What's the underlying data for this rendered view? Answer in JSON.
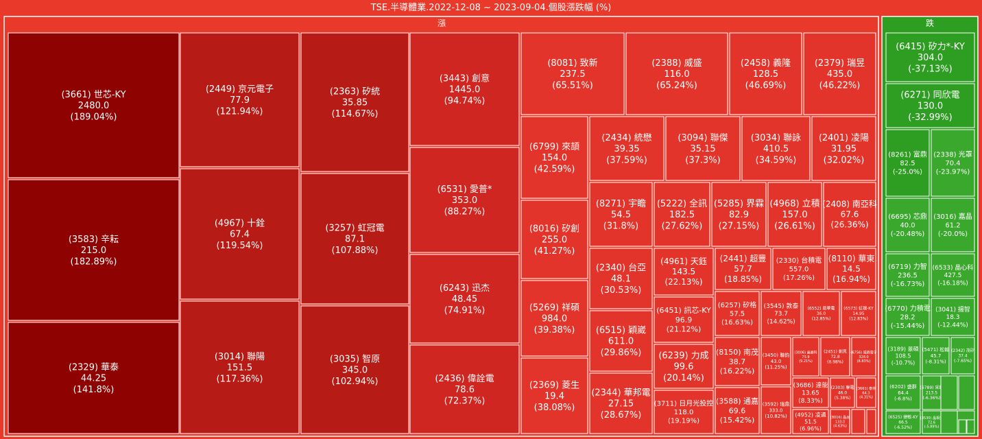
{
  "chart_data": {
    "type": "treemap",
    "title": "TSE.半導體業.2022-12-08 ~ 2023-09-04.個股漲跌幅 (%)",
    "groups": [
      {
        "name": "漲",
        "items": [
          {
            "label": "(3661) 世芯-KY",
            "price": "2480.0",
            "change": "(189.04%)",
            "pct": 189.04
          },
          {
            "label": "(3583) 辛耘",
            "price": "215.0",
            "change": "(182.89%)",
            "pct": 182.89
          },
          {
            "label": "(2329) 華泰",
            "price": "44.25",
            "change": "(141.8%)",
            "pct": 141.8
          },
          {
            "label": "(2449) 京元電子",
            "price": "77.9",
            "change": "(121.94%)",
            "pct": 121.94
          },
          {
            "label": "(4967) 十銓",
            "price": "67.4",
            "change": "(119.54%)",
            "pct": 119.54
          },
          {
            "label": "(3014) 聯陽",
            "price": "151.5",
            "change": "(117.36%)",
            "pct": 117.36
          },
          {
            "label": "(2363) 矽統",
            "price": "35.85",
            "change": "(114.67%)",
            "pct": 114.67
          },
          {
            "label": "(3257) 虹冠電",
            "price": "87.1",
            "change": "(107.88%)",
            "pct": 107.88
          },
          {
            "label": "(3035) 智原",
            "price": "345.0",
            "change": "(102.94%)",
            "pct": 102.94
          },
          {
            "label": "(3443) 創意",
            "price": "1445.0",
            "change": "(94.74%)",
            "pct": 94.74
          },
          {
            "label": "(6531) 愛普*",
            "price": "353.0",
            "change": "(88.27%)",
            "pct": 88.27
          },
          {
            "label": "(6243) 迅杰",
            "price": "48.45",
            "change": "(74.91%)",
            "pct": 74.91
          },
          {
            "label": "(2436) 偉詮電",
            "price": "78.6",
            "change": "(72.37%)",
            "pct": 72.37
          },
          {
            "label": "(8081) 致新",
            "price": "237.5",
            "change": "(65.51%)",
            "pct": 65.51
          },
          {
            "label": "(2388) 威盛",
            "price": "116.0",
            "change": "(65.24%)",
            "pct": 65.24
          },
          {
            "label": "(2458) 義隆",
            "price": "128.5",
            "change": "(46.69%)",
            "pct": 46.69
          },
          {
            "label": "(2379) 瑞昱",
            "price": "435.0",
            "change": "(46.22%)",
            "pct": 46.22
          },
          {
            "label": "(6799) 來頡",
            "price": "154.0",
            "change": "(42.59%)",
            "pct": 42.59
          },
          {
            "label": "(8016) 矽創",
            "price": "255.0",
            "change": "(41.27%)",
            "pct": 41.27
          },
          {
            "label": "(5269) 祥碩",
            "price": "984.0",
            "change": "(39.38%)",
            "pct": 39.38
          },
          {
            "label": "(2369) 菱生",
            "price": "19.4",
            "change": "(38.08%)",
            "pct": 38.08
          },
          {
            "label": "(2434) 統懋",
            "price": "39.35",
            "change": "(37.59%)",
            "pct": 37.59
          },
          {
            "label": "(3094) 聯傑",
            "price": "35.15",
            "change": "(37.3%)",
            "pct": 37.3
          },
          {
            "label": "(3034) 聯詠",
            "price": "410.5",
            "change": "(34.59%)",
            "pct": 34.59
          },
          {
            "label": "(2401) 凌陽",
            "price": "31.95",
            "change": "(32.02%)",
            "pct": 32.02
          },
          {
            "label": "(8271) 宇瞻",
            "price": "54.5",
            "change": "(31.8%)",
            "pct": 31.8
          },
          {
            "label": "(5222) 全訊",
            "price": "182.5",
            "change": "(27.62%)",
            "pct": 27.62
          },
          {
            "label": "(5285) 界霖",
            "price": "82.9",
            "change": "(27.15%)",
            "pct": 27.15
          },
          {
            "label": "(4968) 立積",
            "price": "157.0",
            "change": "(26.61%)",
            "pct": 26.61
          },
          {
            "label": "(2408) 南亞科",
            "price": "67.6",
            "change": "(26.36%)",
            "pct": 26.36
          },
          {
            "label": "(2340) 台亞",
            "price": "48.1",
            "change": "(30.53%)",
            "pct": 30.53
          },
          {
            "label": "(6515) 穎崴",
            "price": "611.0",
            "change": "(29.86%)",
            "pct": 29.86
          },
          {
            "label": "(2344) 華邦電",
            "price": "27.15",
            "change": "(28.67%)",
            "pct": 28.67
          },
          {
            "label": "(4961) 天鈺",
            "price": "143.5",
            "change": "(22.13%)",
            "pct": 22.13
          },
          {
            "label": "(6451) 訊芯-KY",
            "price": "96.9",
            "change": "(21.12%)",
            "pct": 21.12
          },
          {
            "label": "(6239) 力成",
            "price": "99.6",
            "change": "(20.14%)",
            "pct": 20.14
          },
          {
            "label": "(3711) 日月光投控",
            "price": "118.0",
            "change": "(19.19%)",
            "pct": 19.19
          },
          {
            "label": "(2441) 超豐",
            "price": "57.7",
            "change": "(18.85%)",
            "pct": 18.85
          },
          {
            "label": "(2330) 台積電",
            "price": "557.0",
            "change": "(17.26%)",
            "pct": 17.26
          },
          {
            "label": "(8110) 華東",
            "price": "14.5",
            "change": "(16.94%)",
            "pct": 16.94
          },
          {
            "label": "(6257) 矽格",
            "price": "57.5",
            "change": "(16.63%)",
            "pct": 16.63
          },
          {
            "label": "(3545) 敦泰",
            "price": "73.7",
            "change": "(14.62%)",
            "pct": 14.62
          },
          {
            "label": "(6552) 易華電",
            "price": "36.0",
            "change": "(12.85%)",
            "pct": 12.85
          },
          {
            "label": "(6573) 虹揚-KY",
            "price": "14.95",
            "change": "(12.83%)",
            "pct": 12.83
          },
          {
            "label": "(8150) 南茂",
            "price": "38.7",
            "change": "(16.22%)",
            "pct": 16.22
          },
          {
            "label": "(3588) 通嘉",
            "price": "69.6",
            "change": "(15.42%)",
            "pct": 15.42
          },
          {
            "label": "(3450) 聯鈞",
            "price": "43.0",
            "change": "(11.25%)",
            "pct": 11.25
          },
          {
            "label": "(3592) 瑞鼎",
            "price": "333.0",
            "change": "(10.82%)",
            "pct": 10.82
          },
          {
            "label": "(3006) 晶豪科",
            "price": "75.9",
            "change": "(9.21%)",
            "pct": 9.21
          },
          {
            "label": "(2451) 創見",
            "price": "72.8",
            "change": "(8.98%)",
            "pct": 8.98
          },
          {
            "label": "(6756) 威鋒電子",
            "price": "328.0",
            "change": "(8.83%)",
            "pct": 8.83
          },
          {
            "label": "(3686) 達能",
            "price": "13.65",
            "change": "(8.33%)",
            "pct": 8.33
          },
          {
            "label": "(2303) 聯電",
            "price": "46.0",
            "change": "(5.38%)",
            "pct": 5.38
          },
          {
            "label": "(3661) 泰林",
            "price": "64.3",
            "change": "(4.31%)",
            "pct": 4.31
          },
          {
            "label": "(4952) 凌通",
            "price": "51.5",
            "change": "(6.96%)",
            "pct": 6.96
          },
          {
            "label": "(8016) 晶焱",
            "price": "133.0",
            "change": "(4.63%)",
            "pct": 4.63
          },
          {
            "label": "",
            "price": "",
            "change": "",
            "pct": 3.0
          },
          {
            "label": "",
            "price": "",
            "change": "",
            "pct": 2.0
          }
        ]
      },
      {
        "name": "跌",
        "items": [
          {
            "label": "(6415) 矽力*-KY",
            "price": "304.0",
            "change": "(-37.13%)",
            "pct": -37.13
          },
          {
            "label": "(6271) 同欣電",
            "price": "130.0",
            "change": "(-32.99%)",
            "pct": -32.99
          },
          {
            "label": "(8261) 富鼎",
            "price": "82.5",
            "change": "(-25.0%)",
            "pct": -25.0
          },
          {
            "label": "(2338) 光罩",
            "price": "70.4",
            "change": "(-23.97%)",
            "pct": -23.97
          },
          {
            "label": "(6695) 芯鼎",
            "price": "40.0",
            "change": "(-20.48%)",
            "pct": -20.48
          },
          {
            "label": "(3016) 嘉晶",
            "price": "61.2",
            "change": "(-20.0%)",
            "pct": -20.0
          },
          {
            "label": "(6719) 力智",
            "price": "236.5",
            "change": "(-16.73%)",
            "pct": -16.73
          },
          {
            "label": "(6533) 晶心科",
            "price": "427.5",
            "change": "(-16.18%)",
            "pct": -16.18
          },
          {
            "label": "(6770) 力積電",
            "price": "28.2",
            "change": "(-15.44%)",
            "pct": -15.44
          },
          {
            "label": "(3041) 揚智",
            "price": "18.3",
            "change": "(-12.44%)",
            "pct": -12.44
          },
          {
            "label": "(3189) 景碩",
            "price": "108.5",
            "change": "(-10.7%)",
            "pct": -10.7
          },
          {
            "label": "(5471) 松翰",
            "price": "45.7",
            "change": "(-8.31%)",
            "pct": -8.31
          },
          {
            "label": "(2342) 茂矽",
            "price": "37.4",
            "change": "(-7.65%)",
            "pct": -7.65
          },
          {
            "label": "(6202) 盛群",
            "price": "64.4",
            "change": "(-6.8%)",
            "pct": -6.8
          },
          {
            "label": "(6789) 采鈺",
            "price": "213.5",
            "change": "(-6.36%)",
            "pct": -6.36
          },
          {
            "label": "",
            "price": "",
            "change": "",
            "pct": -6.0
          },
          {
            "label": "",
            "price": "",
            "change": "",
            "pct": -5.8
          },
          {
            "label": "(6525) 捷敏-KY",
            "price": "66.5",
            "change": "(-6.52%)",
            "pct": -6.52
          },
          {
            "label": "(3530) 晶相光",
            "price": "72.6",
            "change": "(-5.89%)",
            "pct": -5.89
          },
          {
            "label": "",
            "price": "",
            "change": "",
            "pct": -5.0
          },
          {
            "label": "",
            "price": "",
            "change": "",
            "pct": -4.5
          },
          {
            "label": "",
            "price": "",
            "change": "",
            "pct": -3.0
          },
          {
            "label": "",
            "price": "",
            "change": "",
            "pct": -2.0
          }
        ]
      }
    ],
    "colors": {
      "background": "#e8392b",
      "up_strong": "#8b0000",
      "up_mid": "#b81b15",
      "up_light": "#e2342a",
      "down_strong": "#2e9e22",
      "down_light": "#44b336",
      "border": "#ffffff"
    }
  }
}
